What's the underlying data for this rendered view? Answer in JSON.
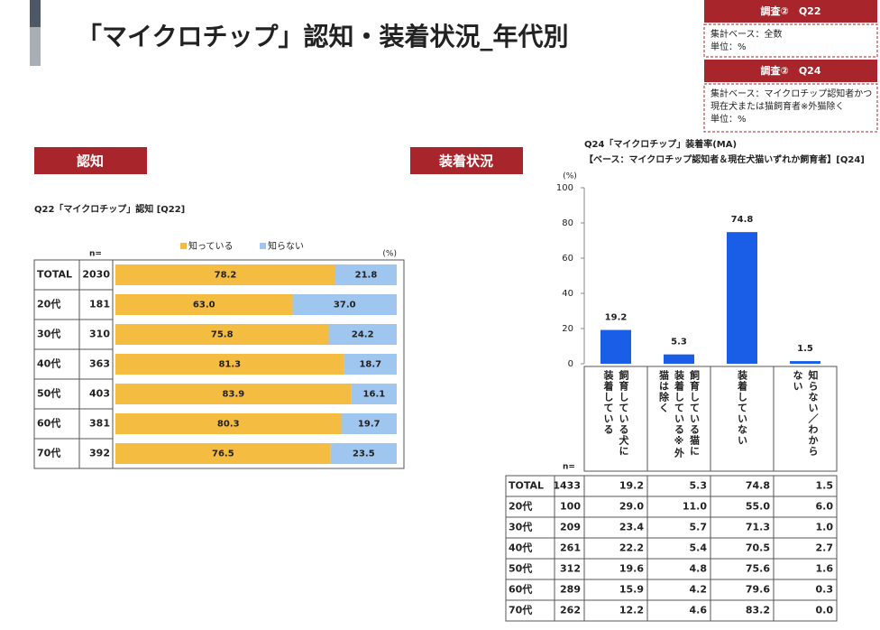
{
  "title": "「マイクロチップ」認知・装着状況_年代別",
  "notes": [
    {
      "header": "調査②　Q22",
      "lines": [
        "集計ベース：全数",
        "単位：%"
      ]
    },
    {
      "header": "調査②　Q24",
      "lines": [
        "集計ベース：マイクロチップ認知者かつ",
        "現在犬または猫飼育者※外猫除く",
        "単位：%"
      ]
    }
  ],
  "sections": [
    "認知",
    "装着状況"
  ],
  "chart_data": [
    {
      "type": "hbar",
      "stacked": true,
      "title": "Q22「マイクロチップ」認知 [Q22]",
      "unit_label": "(%)",
      "n_label": "n=",
      "categories": [
        "TOTAL",
        "20代",
        "30代",
        "40代",
        "50代",
        "60代",
        "70代"
      ],
      "n": [
        2030,
        181,
        310,
        363,
        403,
        381,
        392
      ],
      "xlim": [
        0,
        100
      ],
      "series": [
        {
          "name": "知っている",
          "color": "#f4bc41",
          "values": [
            78.2,
            63.0,
            75.8,
            81.3,
            83.9,
            80.3,
            76.5
          ],
          "value_labels": [
            "78.2",
            "63.0",
            "75.8",
            "81.3",
            "83.9",
            "80.3",
            "76.5"
          ]
        },
        {
          "name": "知らない",
          "color": "#9fc6ef",
          "values": [
            21.8,
            37.0,
            24.2,
            18.7,
            16.1,
            19.7,
            23.5
          ],
          "value_labels": [
            "21.8",
            "37.0",
            "24.2",
            "18.7",
            "16.1",
            "19.7",
            "23.5"
          ]
        }
      ]
    },
    {
      "type": "bar",
      "title": "Q24「マイクロチップ」装着率(MA)",
      "subtitle": "【ベース：マイクロチップ認知者＆現在犬猫いずれか飼育者】[Q24]",
      "unit_label": "(%)",
      "categories": [
        "飼育している犬に装着している",
        "飼育している猫に装着している※外猫は除く",
        "装着していない",
        "知らない／わからない"
      ],
      "values": [
        19.2,
        5.3,
        74.8,
        1.5
      ],
      "color": "#1a5ee8",
      "ylim": [
        0,
        100
      ],
      "yticks": [
        0,
        20,
        40,
        60,
        80,
        100
      ]
    }
  ],
  "table": {
    "n_label": "n=",
    "rows": [
      [
        "TOTAL",
        "1433",
        "19.2",
        "5.3",
        "74.8",
        "1.5"
      ],
      [
        "20代",
        "100",
        "29.0",
        "11.0",
        "55.0",
        "6.0"
      ],
      [
        "30代",
        "209",
        "23.4",
        "5.7",
        "71.3",
        "1.0"
      ],
      [
        "40代",
        "261",
        "22.2",
        "5.4",
        "70.5",
        "2.7"
      ],
      [
        "50代",
        "312",
        "19.6",
        "4.8",
        "75.6",
        "1.6"
      ],
      [
        "60代",
        "289",
        "15.9",
        "4.2",
        "79.6",
        "0.3"
      ],
      [
        "70代",
        "262",
        "12.2",
        "4.6",
        "83.2",
        "0.0"
      ]
    ]
  }
}
